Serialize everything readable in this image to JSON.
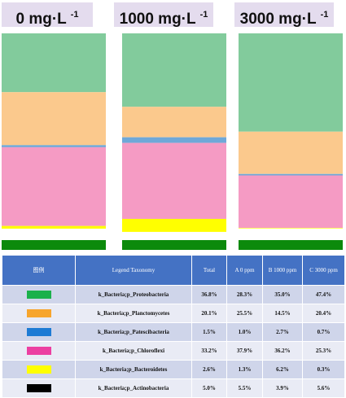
{
  "chart_data": {
    "type": "bar",
    "stacked": true,
    "normalized_percent": true,
    "categories": [
      "0 mg·L",
      "1000 mg·L",
      "3000 mg·L"
    ],
    "category_superscript": "-1",
    "series": [
      {
        "name": "k_Bacteria;p_Proteobacteria",
        "color": "#82cb9c",
        "values": [
          28.3,
          35.0,
          47.4
        ]
      },
      {
        "name": "k_Bacteria;p_Planctomycetes",
        "color": "#fbc98d",
        "values": [
          25.5,
          14.5,
          20.4
        ]
      },
      {
        "name": "k_Bacteria;p_Patescibacteria",
        "color": "#6fa8d8",
        "values": [
          1.0,
          2.7,
          0.7
        ]
      },
      {
        "name": "k_Bacteria;p_Chloroflexi",
        "color": "#f59bc4",
        "values": [
          37.9,
          36.2,
          25.3
        ]
      },
      {
        "name": "k_Bacteria;p_Bacteroidetes",
        "color": "#ffff00",
        "values": [
          1.3,
          6.2,
          0.3
        ]
      },
      {
        "name": "k_Bacteria;p_Actinobacteria",
        "color": "#000000",
        "values": [
          5.5,
          3.9,
          5.6
        ]
      }
    ],
    "ylim": [
      0,
      100
    ],
    "bottom_band_color": "#0c8a0c"
  },
  "legend_table": {
    "headers": [
      "图例",
      "Legend Taxonomy",
      "Total",
      "A 0 ppm",
      "B 1000 ppm",
      "C 3000 ppm"
    ],
    "swatch_colors": [
      "#1bb14b",
      "#f7a52c",
      "#1e7bd4",
      "#ec3fa1",
      "#ffff00",
      "#000000"
    ],
    "rows": [
      {
        "taxonomy": "k_Bacteria;p_Proteobacteria",
        "total": "36.8%",
        "a": "28.3%",
        "b": "35.0%",
        "c": "47.4%"
      },
      {
        "taxonomy": "k_Bacteria;p_Planctomycetes",
        "total": "20.1%",
        "a": "25.5%",
        "b": "14.5%",
        "c": "20.4%"
      },
      {
        "taxonomy": "k_Bacteria;p_Patescibacteria",
        "total": "1.5%",
        "a": "1.0%",
        "b": "2.7%",
        "c": "0.7%"
      },
      {
        "taxonomy": "k_Bacteria;p_Chloroflexi",
        "total": "33.2%",
        "a": "37.9%",
        "b": "36.2%",
        "c": "25.3%"
      },
      {
        "taxonomy": "k_Bacteria;p_Bacteroidetes",
        "total": "2.6%",
        "a": "1.3%",
        "b": "6.2%",
        "c": "0.3%"
      },
      {
        "taxonomy": "k_Bacteria;p_Actinobacteria",
        "total": "5.0%",
        "a": "5.5%",
        "b": "3.9%",
        "c": "5.6%"
      }
    ]
  }
}
